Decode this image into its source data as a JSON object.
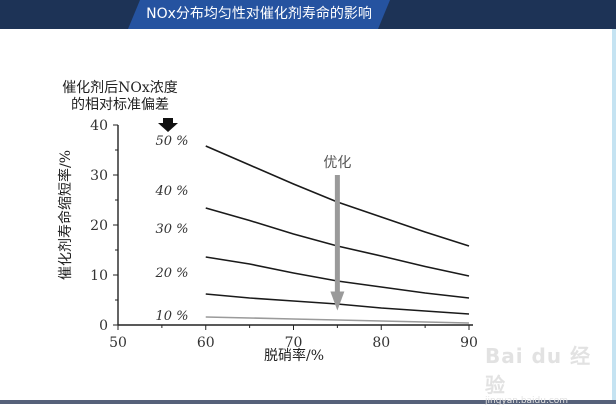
{
  "header": {
    "title": "NOx分布均匀性对催化剂寿命的影响",
    "bar_color": "#1d3356",
    "tab_color": "#2553a0"
  },
  "watermark": {
    "logo": "Bai du 经验",
    "url": "jingyan.baidu.com"
  },
  "chart_data": {
    "type": "line",
    "title": "NOx分布均匀性对催化剂寿命的影响",
    "legend_title_line1": "催化剂后NOx浓度",
    "legend_title_line2": "的相对标准偏差",
    "xlabel": "脱硝率/%",
    "ylabel": "催化剂寿命缩短率/%",
    "xlim": [
      50,
      90
    ],
    "ylim": [
      0,
      40
    ],
    "x_ticks": [
      "50",
      "60",
      "70",
      "80",
      "90"
    ],
    "y_ticks": [
      "0",
      "10",
      "20",
      "30",
      "40"
    ],
    "grid": false,
    "x": [
      60,
      65,
      70,
      75,
      80,
      85,
      90
    ],
    "series": [
      {
        "name": "50 %",
        "values": [
          35.8,
          32.0,
          28.2,
          24.6,
          21.6,
          18.6,
          15.8
        ],
        "color": "#1a1a1a"
      },
      {
        "name": "40 %",
        "values": [
          23.4,
          20.9,
          18.2,
          15.8,
          13.8,
          11.7,
          9.8
        ],
        "color": "#1a1a1a"
      },
      {
        "name": "30 %",
        "values": [
          13.6,
          12.2,
          10.4,
          8.8,
          7.6,
          6.4,
          5.4
        ],
        "color": "#1a1a1a"
      },
      {
        "name": "20 %",
        "values": [
          6.2,
          5.4,
          4.8,
          4.2,
          3.4,
          2.8,
          2.2
        ],
        "color": "#1a1a1a"
      },
      {
        "name": "10 %",
        "values": [
          1.6,
          1.4,
          1.2,
          1.0,
          0.8,
          0.6,
          0.4
        ],
        "color": "#9a9a9a"
      }
    ],
    "annotations": [
      {
        "text": "优化",
        "type": "arrow-down",
        "x": 75,
        "y_from": 30,
        "y_to": 3.5,
        "color": "#9a9a9a"
      },
      {
        "text": "",
        "type": "arrow-down-bold",
        "x": 55.5,
        "y": 40,
        "color": "#111111"
      }
    ]
  }
}
